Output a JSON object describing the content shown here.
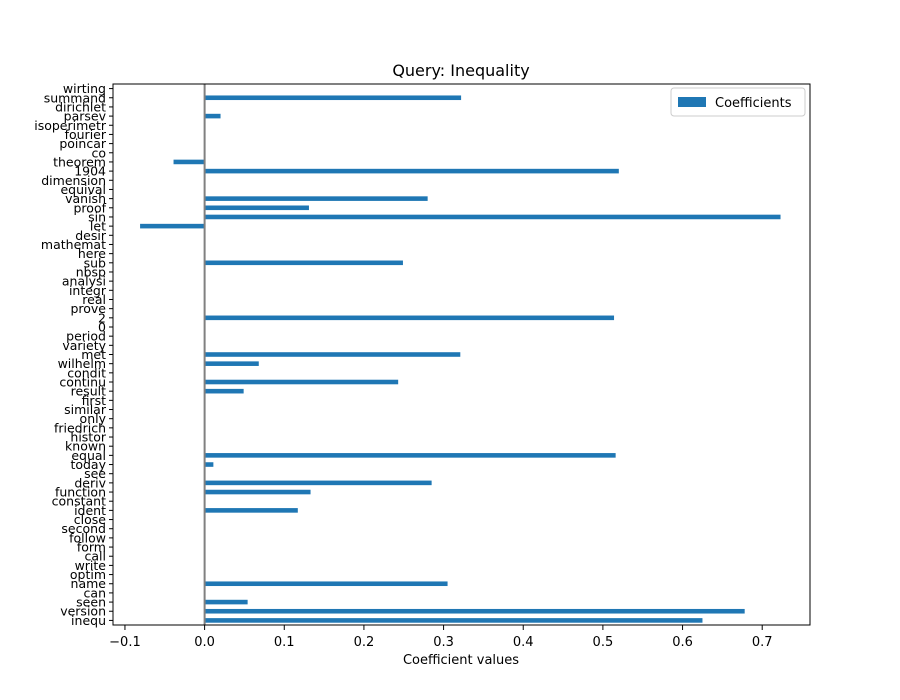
{
  "chart_data": {
    "type": "bar",
    "orientation": "horizontal",
    "title": "Query: Inequality",
    "xlabel": "Coefficient values",
    "ylabel": "",
    "xlim": [
      -0.115,
      0.76
    ],
    "xticks": [
      -0.1,
      0.0,
      0.1,
      0.2,
      0.3,
      0.4,
      0.5,
      0.6,
      0.7
    ],
    "xtick_labels": [
      "−0.1",
      "0.0",
      "0.1",
      "0.2",
      "0.3",
      "0.4",
      "0.5",
      "0.6",
      "0.7"
    ],
    "grid": false,
    "legend_position": "top-right",
    "zero_line": true,
    "categories": [
      "inequ",
      "version",
      "seen",
      "can",
      "name",
      "optim",
      "write",
      "call",
      "form",
      "follow",
      "second",
      "close",
      "ident",
      "constant",
      "function",
      "deriv",
      "see",
      "today",
      "equal",
      "known",
      "histor",
      "friedrich",
      "only",
      "similar",
      "first",
      "result",
      "continu",
      "condit",
      "wilhelm",
      "met",
      "variety",
      "period",
      "0",
      "2",
      "prove",
      "real",
      "integr",
      "analysi",
      "nbsp",
      "sub",
      "here",
      "mathemat",
      "desir",
      "let",
      "sin",
      "proof",
      "vanish",
      "equival",
      "dimension",
      "1904",
      "theorem",
      "co",
      "poincar",
      "fourier",
      "isoperimetr",
      "parsev",
      "dirichlet",
      "summand",
      "wirting"
    ],
    "series": [
      {
        "name": "Coefficients",
        "color": "#1f77b4",
        "values": [
          0.625,
          0.678,
          0.054,
          0,
          0.305,
          0,
          0,
          0,
          0,
          0,
          0,
          0,
          0.117,
          0,
          0.133,
          0.285,
          0,
          0.011,
          0.516,
          0,
          0,
          0,
          0,
          0,
          0,
          0.049,
          0.243,
          0,
          0.068,
          0.321,
          0,
          0,
          0,
          0.514,
          0,
          0,
          0,
          0,
          0,
          0.249,
          0,
          0,
          0,
          -0.081,
          0.723,
          0.131,
          0.28,
          0,
          0,
          0.52,
          -0.039,
          0,
          0,
          0,
          0,
          0.02,
          0,
          0.322,
          0
        ]
      }
    ]
  }
}
